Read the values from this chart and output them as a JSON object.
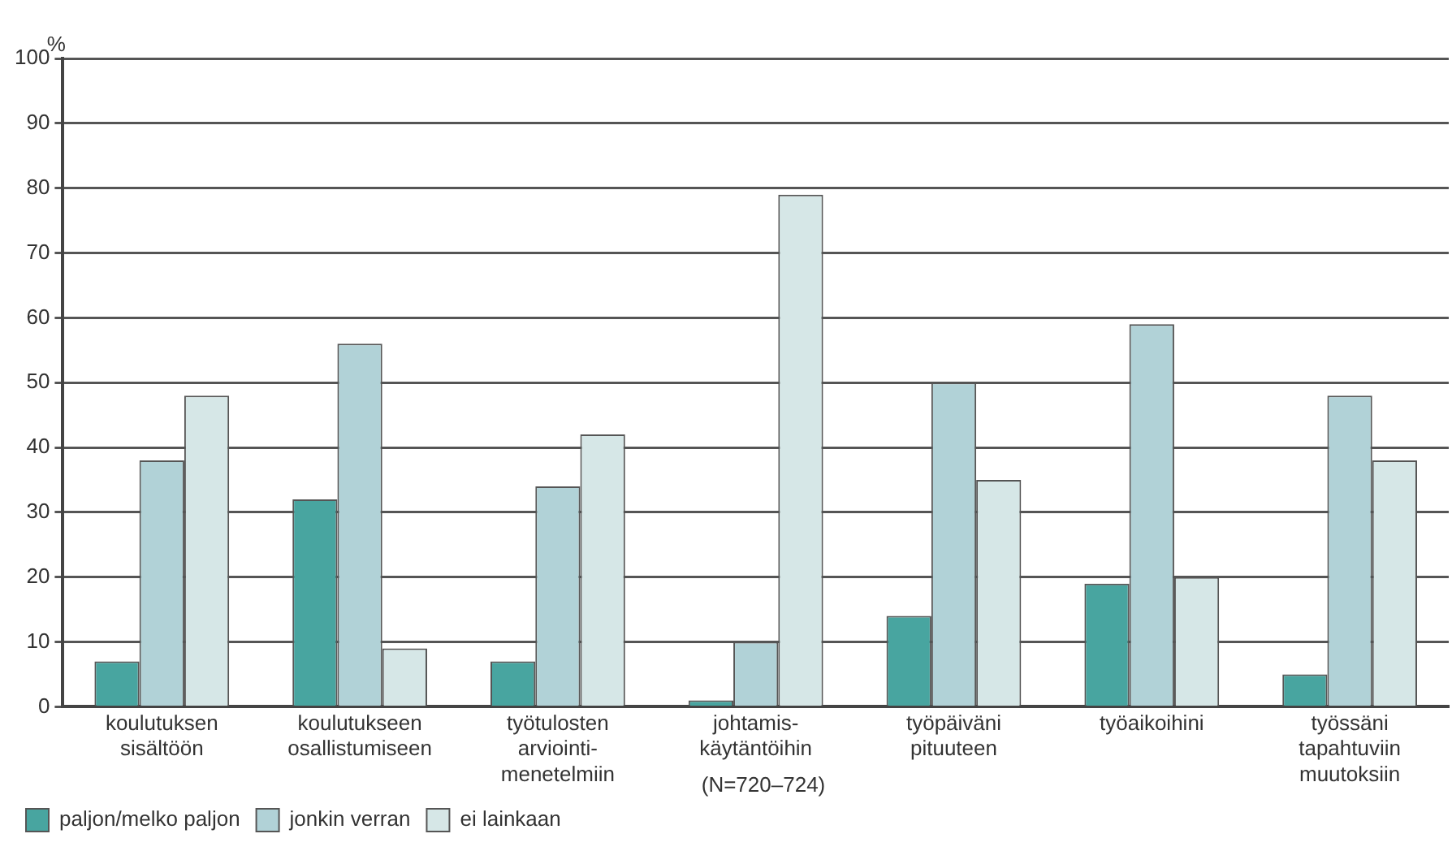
{
  "chart_data": {
    "type": "bar",
    "ylabel": "%",
    "categories": [
      "koulutuksen sisältöön",
      "koulutukseen osallistumiseen",
      "työtulosten arviointi-menetelmiin",
      "johtamis-käytäntöihin",
      "työpäiväni pituuteen",
      "työaikoihini",
      "työssäni tapahtuviin muutoksiin"
    ],
    "series": [
      {
        "name": "paljon/melko paljon",
        "color": "#48a5a0",
        "values": [
          7,
          32,
          7,
          1,
          14,
          19,
          5
        ]
      },
      {
        "name": "jonkin verran",
        "color": "#b1d2d7",
        "values": [
          38,
          56,
          34,
          10,
          50,
          59,
          48
        ]
      },
      {
        "name": "ei lainkaan",
        "color": "#d6e7e7",
        "values": [
          48,
          9,
          42,
          79,
          35,
          20,
          38
        ]
      }
    ],
    "ylim": [
      0,
      100
    ],
    "yticks": [
      0,
      10,
      20,
      30,
      40,
      50,
      60,
      70,
      80,
      90,
      100
    ],
    "grid": "y",
    "legend": "bottom left",
    "annotations": [
      "(N=720–724)"
    ]
  }
}
